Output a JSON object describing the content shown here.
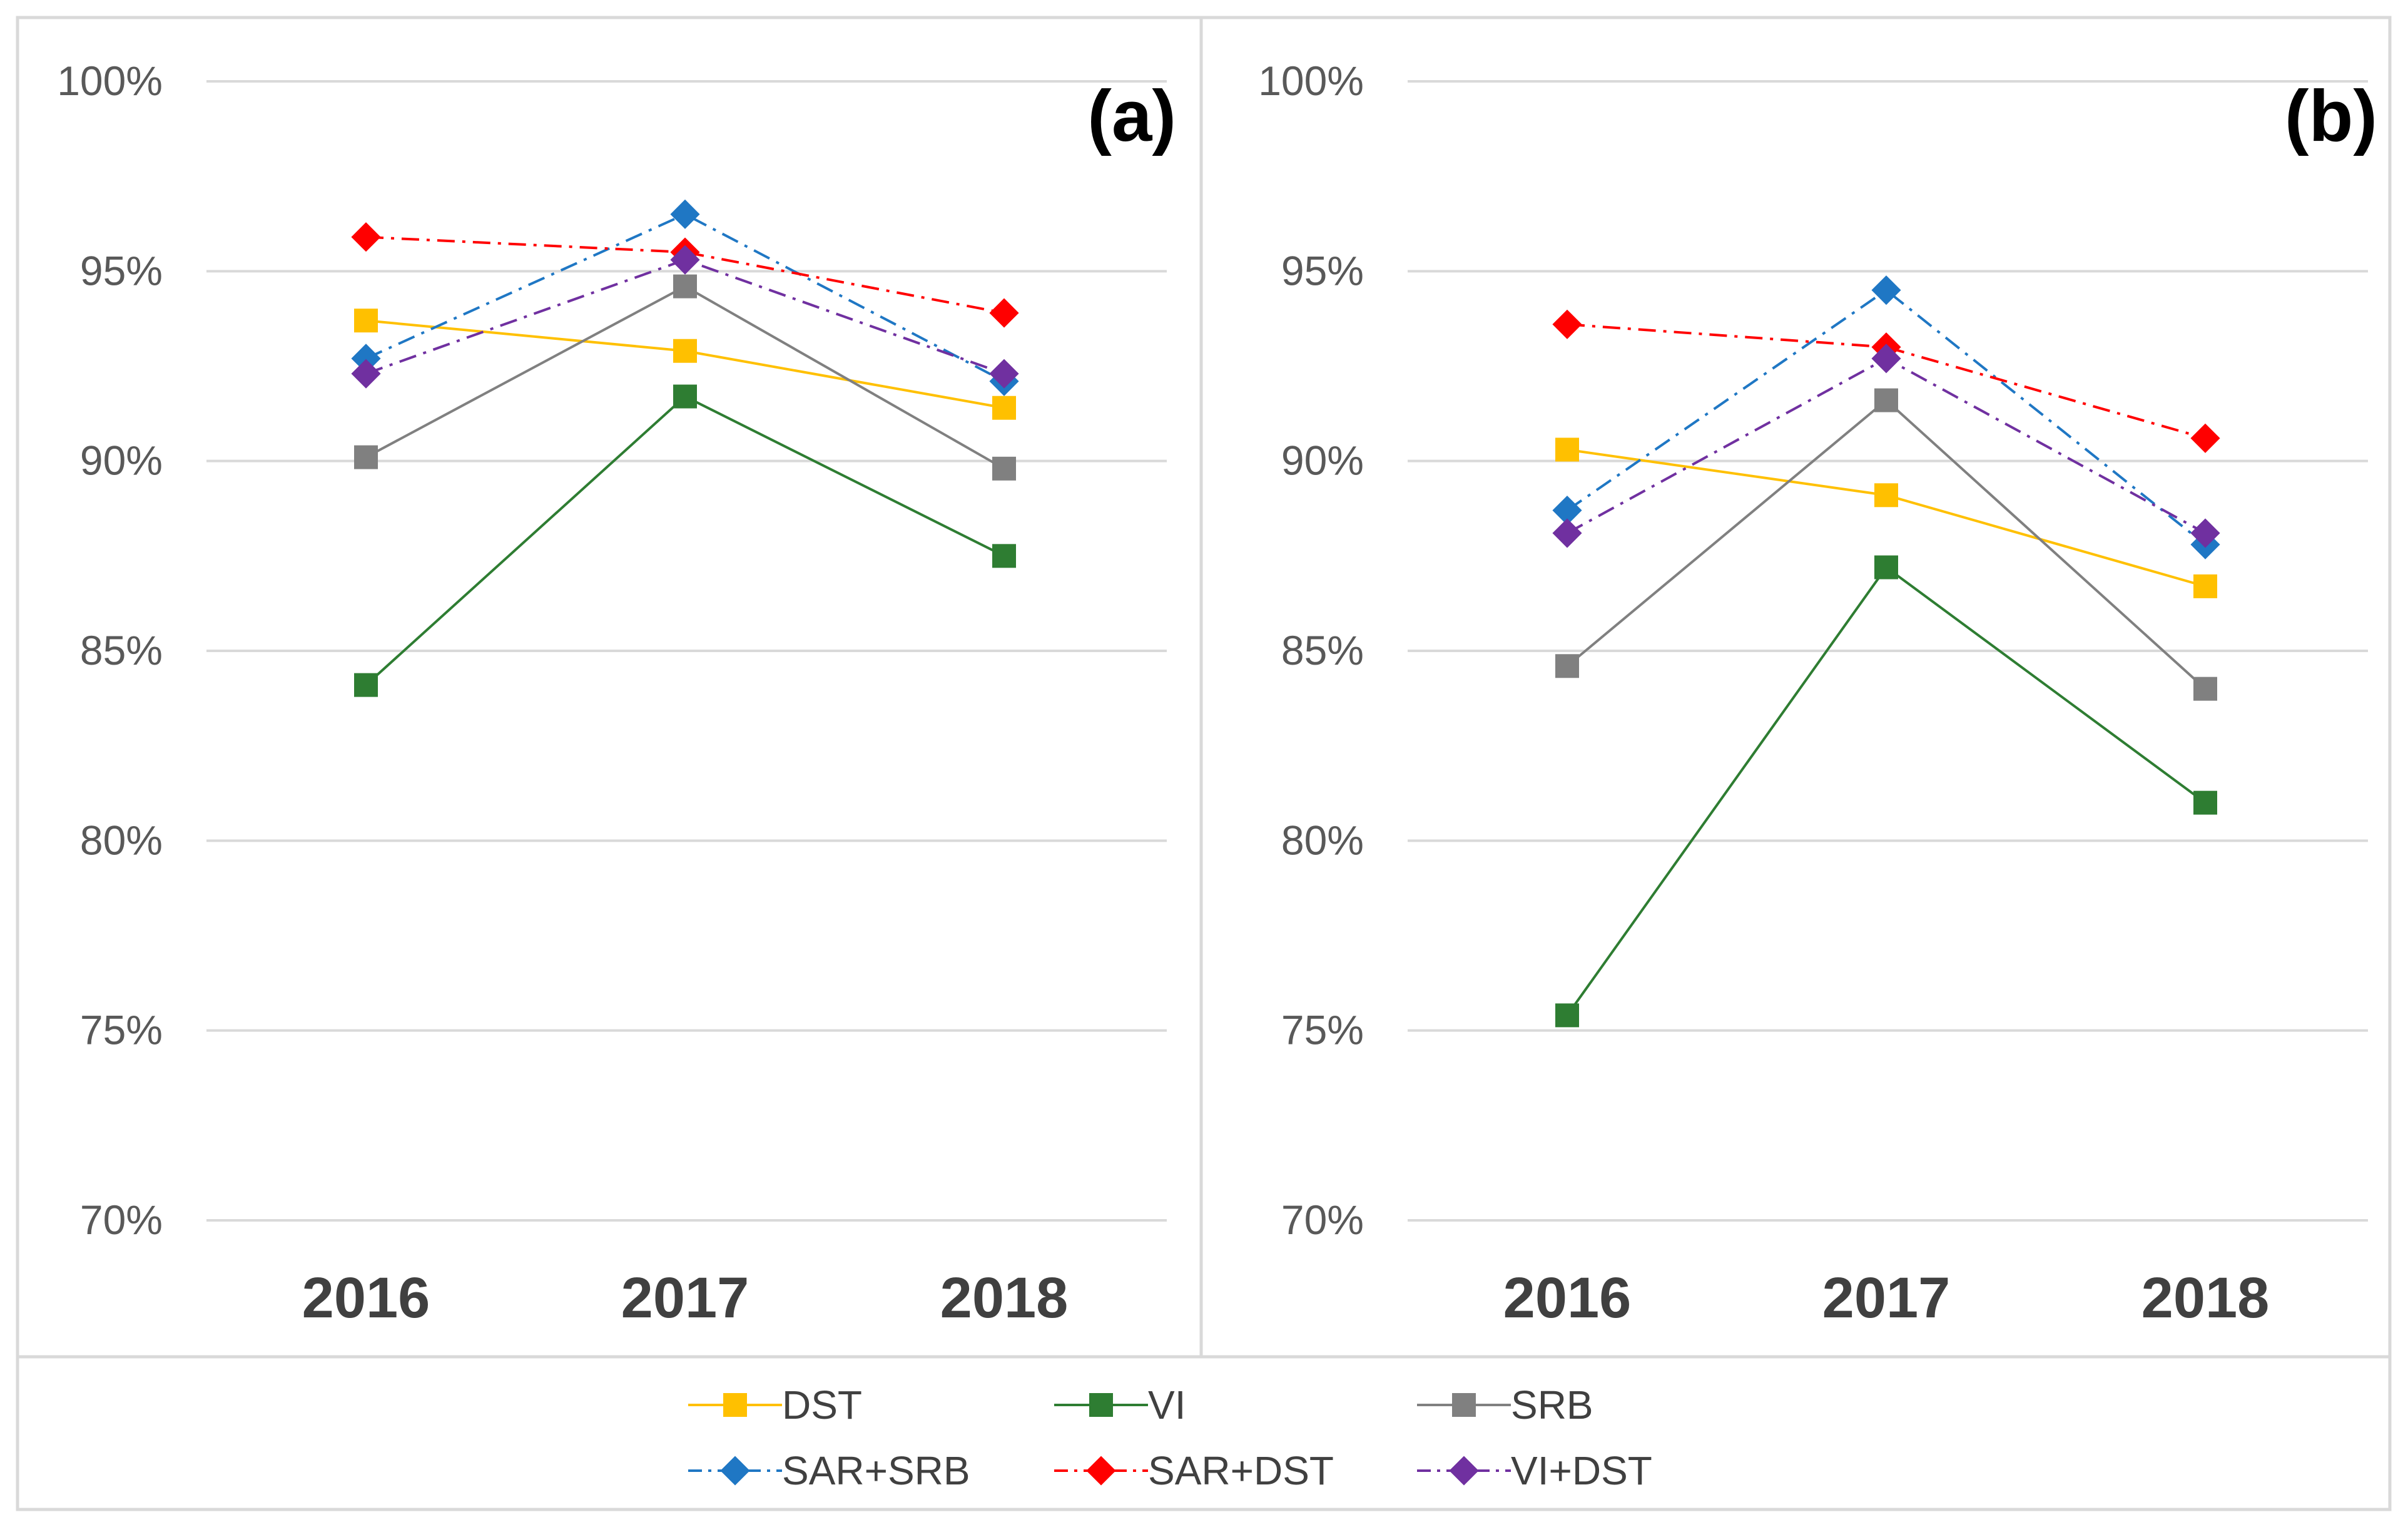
{
  "chart_data": [
    {
      "type": "line",
      "panel_label": "(a)",
      "categories": [
        "2016",
        "2017",
        "2018"
      ],
      "y_tick_labels": [
        "70%",
        "75%",
        "80%",
        "85%",
        "90%",
        "95%",
        "100%"
      ],
      "ylim": [
        70,
        100
      ],
      "grid": true,
      "series": [
        {
          "name": "DST",
          "values": [
            93.7,
            92.9,
            91.4
          ]
        },
        {
          "name": "VI",
          "values": [
            84.1,
            91.7,
            87.5
          ]
        },
        {
          "name": "SRB",
          "values": [
            90.1,
            94.6,
            89.8
          ]
        },
        {
          "name": "SAR+SRB",
          "values": [
            92.7,
            96.5,
            92.1
          ]
        },
        {
          "name": "SAR+DST",
          "values": [
            95.9,
            95.5,
            93.9
          ]
        },
        {
          "name": "VI+DST",
          "values": [
            92.3,
            95.3,
            92.3
          ]
        }
      ]
    },
    {
      "type": "line",
      "panel_label": "(b)",
      "categories": [
        "2016",
        "2017",
        "2018"
      ],
      "y_tick_labels": [
        "70%",
        "75%",
        "80%",
        "85%",
        "90%",
        "95%",
        "100%"
      ],
      "ylim": [
        70,
        100
      ],
      "grid": true,
      "series": [
        {
          "name": "DST",
          "values": [
            90.3,
            89.1,
            86.7
          ]
        },
        {
          "name": "VI",
          "values": [
            75.4,
            87.2,
            81.0
          ]
        },
        {
          "name": "SRB",
          "values": [
            84.6,
            91.6,
            84.0
          ]
        },
        {
          "name": "SAR+SRB",
          "values": [
            88.7,
            94.5,
            87.8
          ]
        },
        {
          "name": "SAR+DST",
          "values": [
            93.6,
            93.0,
            90.6
          ]
        },
        {
          "name": "VI+DST",
          "values": [
            88.1,
            92.7,
            88.1
          ]
        }
      ]
    }
  ],
  "legend": {
    "position": "bottom",
    "items": [
      {
        "name": "DST",
        "color": "#FFC000",
        "marker": "square",
        "dash": "solid"
      },
      {
        "name": "VI",
        "color": "#2E7D32",
        "marker": "square",
        "dash": "solid"
      },
      {
        "name": "SRB",
        "color": "#808080",
        "marker": "square",
        "dash": "solid"
      },
      {
        "name": "SAR+SRB",
        "color": "#1F77C4",
        "marker": "diamond",
        "dash": "dashdot"
      },
      {
        "name": "SAR+DST",
        "color": "#FF0000",
        "marker": "diamond",
        "dash": "dashdot"
      },
      {
        "name": "VI+DST",
        "color": "#7030A0",
        "marker": "diamond",
        "dash": "dashdot"
      }
    ]
  }
}
